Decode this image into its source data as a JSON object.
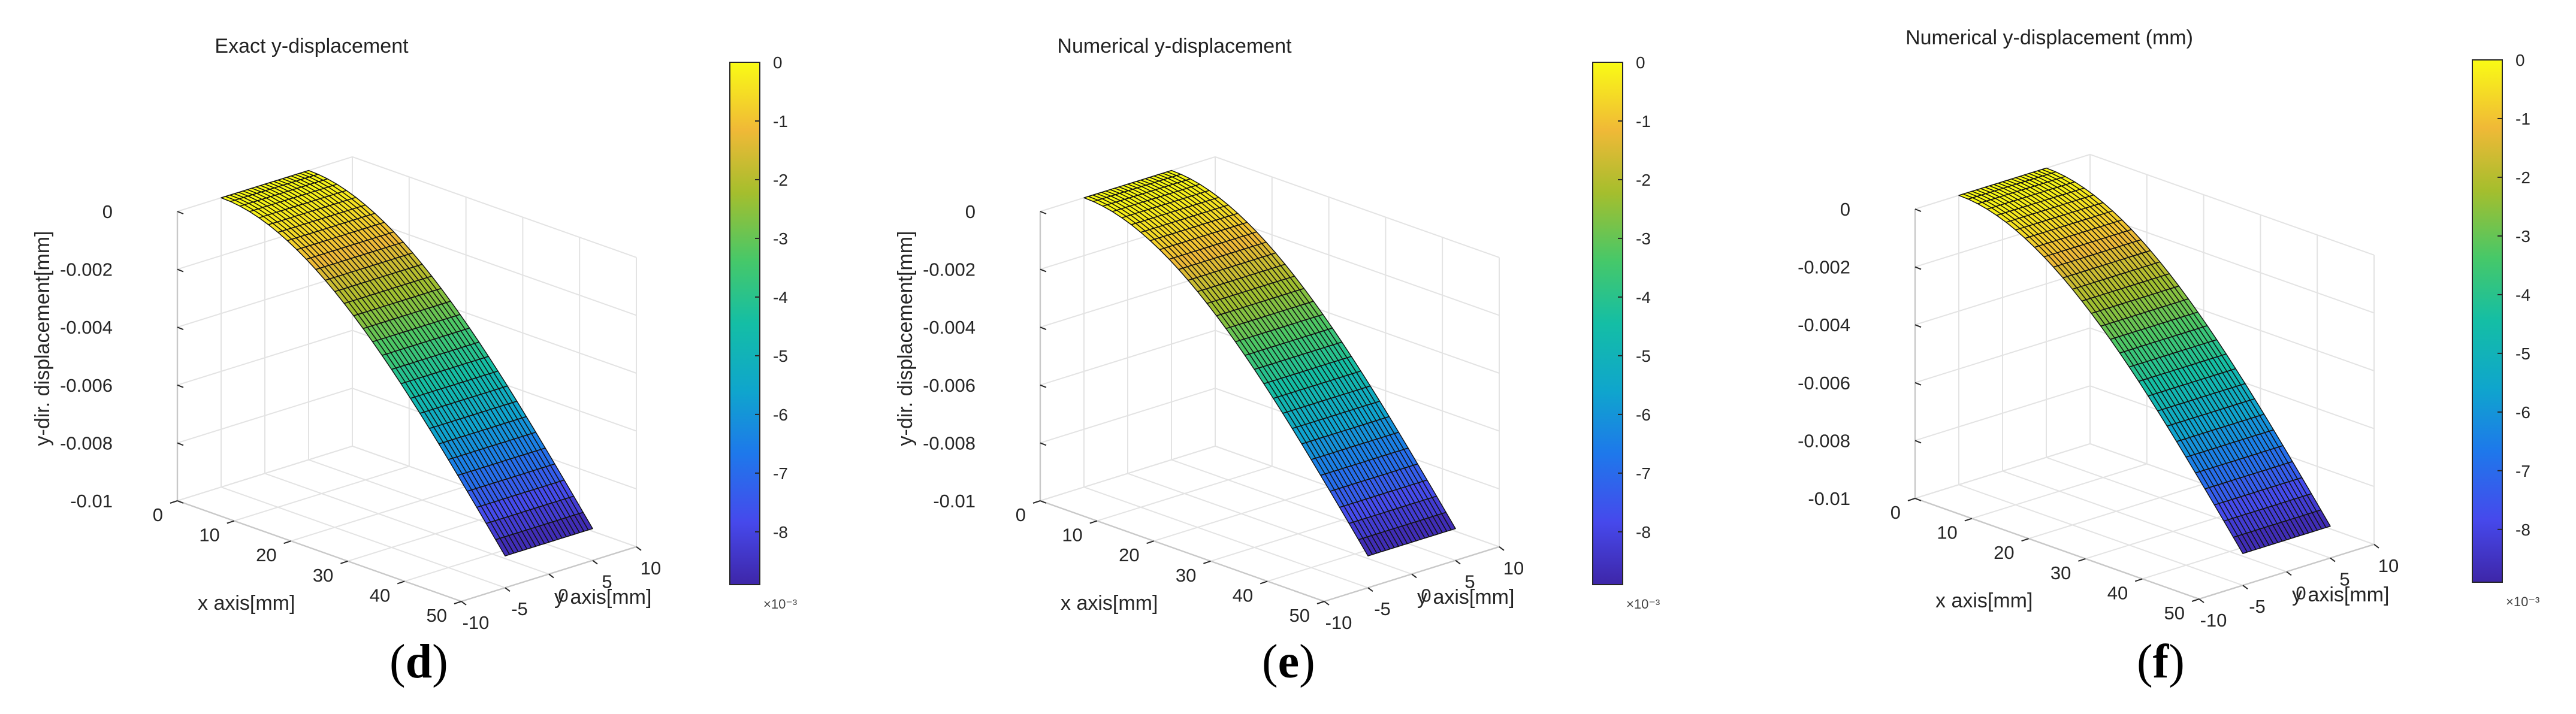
{
  "colorbar_multiplier": "×10⁻³",
  "colors": {
    "grid": "#e3e3e3",
    "box": "#c8c8c8",
    "mesh_edge": "#111111"
  },
  "chart_data": [
    {
      "type": "surface",
      "panel_label": "d",
      "title": "Exact y-displacement",
      "xlabel": "x axis[mm]",
      "ylabel": "y axis[mm]",
      "zlabel": "y-dir. displacement[mm]",
      "x_ticks": [
        "0",
        "10",
        "20",
        "30",
        "40",
        "50"
      ],
      "y_ticks": [
        "-10",
        "-5",
        "0",
        "5",
        "10"
      ],
      "z_ticks": [
        "0",
        "-0.002",
        "-0.004",
        "-0.006",
        "-0.008",
        "-0.01"
      ],
      "xlim": [
        0,
        50
      ],
      "ylim": [
        -10,
        10
      ],
      "zlim": [
        -0.01,
        0
      ],
      "colorbar_ticks": [
        "0",
        "-1",
        "-2",
        "-3",
        "-4",
        "-5",
        "-6",
        "-7",
        "-8"
      ],
      "colorbar_range": [
        -0.0089,
        0
      ],
      "surface": {
        "x": [
          0,
          50
        ],
        "y": [
          -5,
          5
        ],
        "z_at_x0": 0,
        "z_at_xmax": -0.0089,
        "shape": "cantilever deflection",
        "mesh": [
          30,
          20
        ]
      }
    },
    {
      "type": "surface",
      "panel_label": "e",
      "title": "Numerical y-displacement",
      "xlabel": "x axis[mm]",
      "ylabel": "y axis[mm]",
      "zlabel": "y-dir. displacement[mm]",
      "x_ticks": [
        "0",
        "10",
        "20",
        "30",
        "40",
        "50"
      ],
      "y_ticks": [
        "-10",
        "-5",
        "0",
        "5",
        "10"
      ],
      "z_ticks": [
        "0",
        "-0.002",
        "-0.004",
        "-0.006",
        "-0.008",
        "-0.01"
      ],
      "xlim": [
        0,
        50
      ],
      "ylim": [
        -10,
        10
      ],
      "zlim": [
        -0.01,
        0
      ],
      "colorbar_ticks": [
        "0",
        "-1",
        "-2",
        "-3",
        "-4",
        "-5",
        "-6",
        "-7",
        "-8"
      ],
      "colorbar_range": [
        -0.0089,
        0
      ],
      "surface": {
        "x": [
          0,
          50
        ],
        "y": [
          -5,
          5
        ],
        "z_at_x0": 0,
        "z_at_xmax": -0.0089,
        "shape": "cantilever deflection",
        "mesh": [
          30,
          20
        ]
      }
    },
    {
      "type": "surface",
      "panel_label": "f",
      "title": "Numerical y-displacement (mm)",
      "xlabel": "x axis[mm]",
      "ylabel": "y axis[mm]",
      "zlabel": "",
      "x_ticks": [
        "0",
        "10",
        "20",
        "30",
        "40",
        "50"
      ],
      "y_ticks": [
        "-10",
        "-5",
        "0",
        "5",
        "10"
      ],
      "z_ticks": [
        "0",
        "-0.002",
        "-0.004",
        "-0.006",
        "-0.008",
        "-0.01"
      ],
      "xlim": [
        0,
        50
      ],
      "ylim": [
        -10,
        10
      ],
      "zlim": [
        -0.01,
        0
      ],
      "colorbar_ticks": [
        "0",
        "-1",
        "-2",
        "-3",
        "-4",
        "-5",
        "-6",
        "-7",
        "-8"
      ],
      "colorbar_range": [
        -0.0089,
        0
      ],
      "surface": {
        "x": [
          0,
          50
        ],
        "y": [
          -5,
          5
        ],
        "z_at_x0": 0,
        "z_at_xmax": -0.0089,
        "shape": "cantilever deflection",
        "mesh": [
          30,
          20
        ]
      }
    }
  ]
}
